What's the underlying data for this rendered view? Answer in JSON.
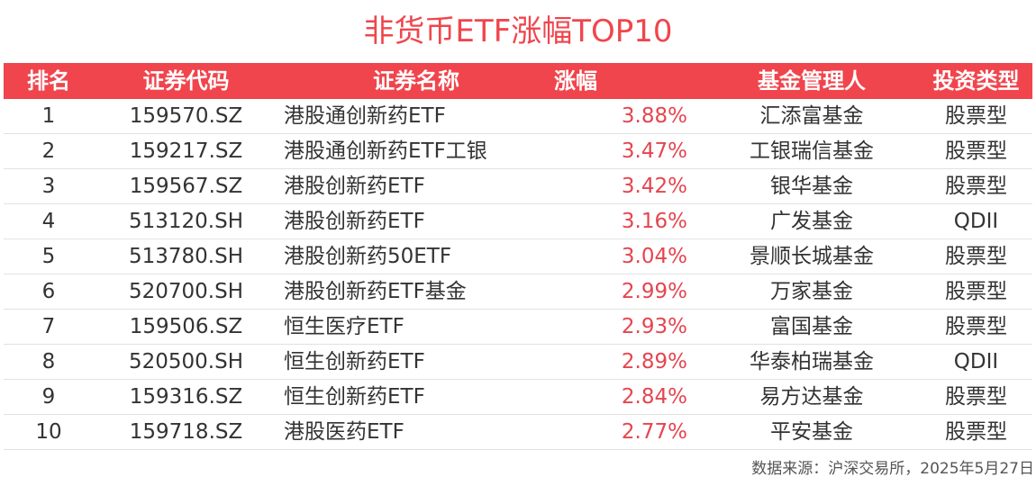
{
  "chart_data": {
    "type": "table",
    "title": "非货币ETF涨幅TOP10",
    "columns": [
      "排名",
      "证券代码",
      "证券名称",
      "涨幅",
      "基金管理人",
      "投资类型"
    ],
    "rows": [
      [
        "1",
        "159570.SZ",
        "港股通创新药ETF",
        "3.88%",
        "汇添富基金",
        "股票型"
      ],
      [
        "2",
        "159217.SZ",
        "港股通创新药ETF工银",
        "3.47%",
        "工银瑞信基金",
        "股票型"
      ],
      [
        "3",
        "159567.SZ",
        "港股创新药ETF",
        "3.42%",
        "银华基金",
        "股票型"
      ],
      [
        "4",
        "513120.SH",
        "港股创新药ETF",
        "3.16%",
        "广发基金",
        "QDII"
      ],
      [
        "5",
        "513780.SH",
        "港股创新药50ETF",
        "3.04%",
        "景顺长城基金",
        "股票型"
      ],
      [
        "6",
        "520700.SH",
        "港股创新药ETF基金",
        "2.99%",
        "万家基金",
        "股票型"
      ],
      [
        "7",
        "159506.SZ",
        "恒生医疗ETF",
        "2.93%",
        "富国基金",
        "股票型"
      ],
      [
        "8",
        "520500.SH",
        "恒生创新药ETF",
        "2.89%",
        "华泰柏瑞基金",
        "QDII"
      ],
      [
        "9",
        "159316.SZ",
        "恒生创新药ETF",
        "2.84%",
        "易方达基金",
        "股票型"
      ],
      [
        "10",
        "159718.SZ",
        "港股医药ETF",
        "2.77%",
        "平安基金",
        "股票型"
      ]
    ],
    "source": "数据来源：沪深交易所，2025年5月27日"
  },
  "colors": {
    "accent": "#f0454d",
    "change_text": "#e5454f",
    "header_text": "#ffffff",
    "body_text": "#333333"
  }
}
